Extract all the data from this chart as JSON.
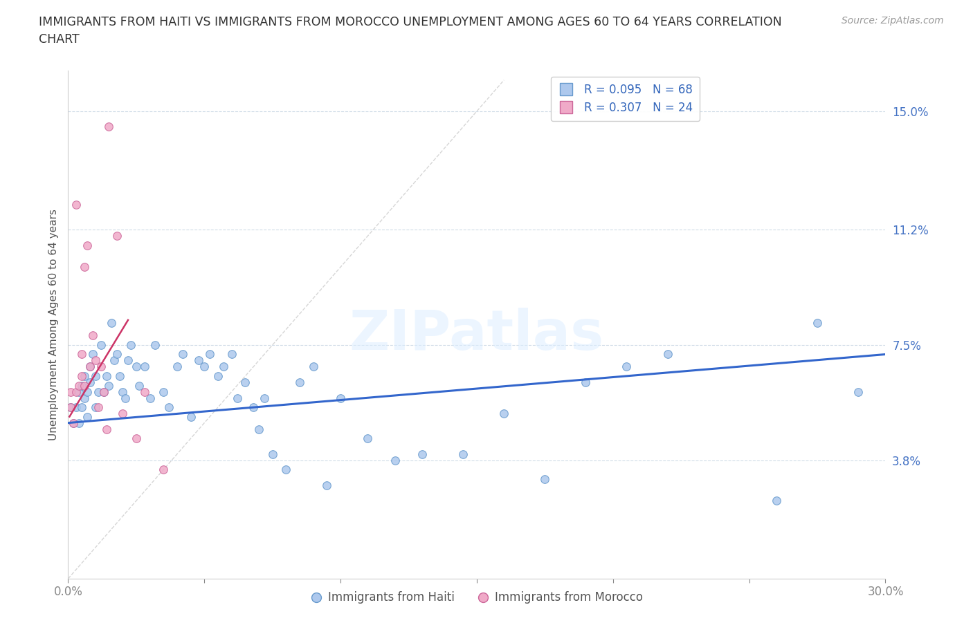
{
  "title_line1": "IMMIGRANTS FROM HAITI VS IMMIGRANTS FROM MOROCCO UNEMPLOYMENT AMONG AGES 60 TO 64 YEARS CORRELATION",
  "title_line2": "CHART",
  "source": "Source: ZipAtlas.com",
  "ylabel": "Unemployment Among Ages 60 to 64 years",
  "xlim": [
    0.0,
    0.3
  ],
  "ylim": [
    0.0,
    0.163
  ],
  "xtick_vals": [
    0.0,
    0.05,
    0.1,
    0.15,
    0.2,
    0.25,
    0.3
  ],
  "xticklabels": [
    "0.0%",
    "",
    "",
    "",
    "",
    "",
    "30.0%"
  ],
  "ytick_positions": [
    0.038,
    0.075,
    0.112,
    0.15
  ],
  "ytick_labels": [
    "3.8%",
    "7.5%",
    "11.2%",
    "15.0%"
  ],
  "haiti_color": "#adc8ed",
  "morocco_color": "#f0aac8",
  "haiti_edge_color": "#6699cc",
  "morocco_edge_color": "#cc6699",
  "trend_haiti_color": "#3366cc",
  "trend_morocco_color": "#cc3366",
  "legend_haiti_label": "Immigrants from Haiti",
  "legend_morocco_label": "Immigrants from Morocco",
  "R_haiti": 0.095,
  "N_haiti": 68,
  "R_morocco": 0.307,
  "N_morocco": 24,
  "legend_text_color": "#3366bb",
  "haiti_x": [
    0.001,
    0.002,
    0.003,
    0.004,
    0.004,
    0.005,
    0.005,
    0.006,
    0.006,
    0.007,
    0.007,
    0.008,
    0.008,
    0.009,
    0.01,
    0.01,
    0.011,
    0.012,
    0.013,
    0.014,
    0.015,
    0.016,
    0.017,
    0.018,
    0.019,
    0.02,
    0.021,
    0.022,
    0.023,
    0.025,
    0.026,
    0.028,
    0.03,
    0.032,
    0.035,
    0.037,
    0.04,
    0.042,
    0.045,
    0.048,
    0.05,
    0.052,
    0.055,
    0.057,
    0.06,
    0.062,
    0.065,
    0.068,
    0.07,
    0.072,
    0.075,
    0.08,
    0.085,
    0.09,
    0.095,
    0.1,
    0.11,
    0.12,
    0.13,
    0.145,
    0.16,
    0.175,
    0.19,
    0.205,
    0.22,
    0.26,
    0.275,
    0.29
  ],
  "haiti_y": [
    0.055,
    0.05,
    0.055,
    0.05,
    0.06,
    0.055,
    0.062,
    0.058,
    0.065,
    0.052,
    0.06,
    0.063,
    0.068,
    0.072,
    0.055,
    0.065,
    0.06,
    0.075,
    0.06,
    0.065,
    0.062,
    0.082,
    0.07,
    0.072,
    0.065,
    0.06,
    0.058,
    0.07,
    0.075,
    0.068,
    0.062,
    0.068,
    0.058,
    0.075,
    0.06,
    0.055,
    0.068,
    0.072,
    0.052,
    0.07,
    0.068,
    0.072,
    0.065,
    0.068,
    0.072,
    0.058,
    0.063,
    0.055,
    0.048,
    0.058,
    0.04,
    0.035,
    0.063,
    0.068,
    0.03,
    0.058,
    0.045,
    0.038,
    0.04,
    0.04,
    0.053,
    0.032,
    0.063,
    0.068,
    0.072,
    0.025,
    0.082,
    0.06
  ],
  "morocco_x": [
    0.001,
    0.001,
    0.002,
    0.003,
    0.003,
    0.004,
    0.005,
    0.005,
    0.006,
    0.006,
    0.007,
    0.008,
    0.009,
    0.01,
    0.011,
    0.012,
    0.013,
    0.014,
    0.015,
    0.018,
    0.02,
    0.025,
    0.028,
    0.035
  ],
  "morocco_y": [
    0.055,
    0.06,
    0.05,
    0.12,
    0.06,
    0.062,
    0.065,
    0.072,
    0.062,
    0.1,
    0.107,
    0.068,
    0.078,
    0.07,
    0.055,
    0.068,
    0.06,
    0.048,
    0.145,
    0.11,
    0.053,
    0.045,
    0.06,
    0.035
  ],
  "ref_line_color": "#cccccc",
  "grid_color": "#bbccdd",
  "morocco_trend_x_start": 0.001,
  "morocco_trend_x_end": 0.022,
  "haiti_trend_x_start": 0.0,
  "haiti_trend_x_end": 0.3
}
